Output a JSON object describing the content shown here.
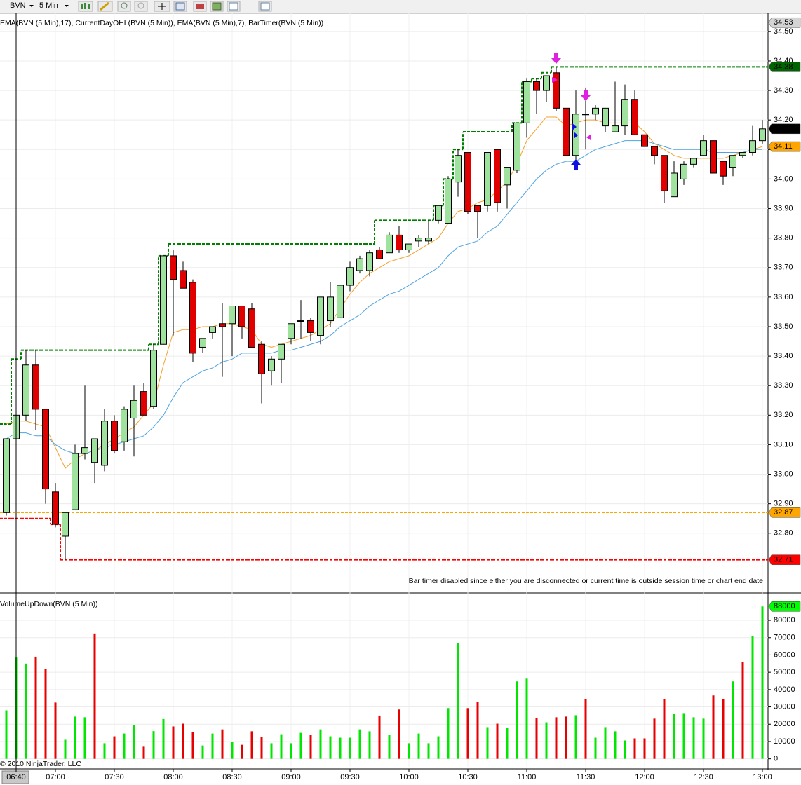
{
  "toolbar": {
    "symbol": "BVN",
    "interval": "5 Min"
  },
  "footer": "© 2010 NinjaTrader, LLC",
  "chart_data": [
    {
      "type": "candlestick",
      "title": "EMA(BVN (5 Min),17), CurrentDayOHL(BVN (5 Min)), EMA(BVN (5 Min),7), BarTimer(BVN (5 Min))",
      "annotation": "Bar timer disabled since either you are disconnected or current time is outside session time or chart end date",
      "up_color": "#9ee29e",
      "down_color": "#e00000",
      "open": [
        32.87,
        33.12,
        33.2,
        33.37,
        33.22,
        32.94,
        32.79,
        32.88,
        33.07,
        33.04,
        33.03,
        33.18,
        33.11,
        33.19,
        33.28,
        33.23,
        33.44,
        33.74,
        33.69,
        33.65,
        33.43,
        33.48,
        33.51,
        33.51,
        33.57,
        33.56,
        33.44,
        33.35,
        33.39,
        33.46,
        33.52,
        33.52,
        33.47,
        33.52,
        33.53,
        33.64,
        33.69,
        33.69,
        33.76,
        33.75,
        33.81,
        33.76,
        33.79,
        33.79,
        33.86,
        33.85,
        33.99,
        34.09,
        33.91,
        33.91,
        34.1,
        33.98,
        34.03,
        34.19,
        34.33,
        34.3,
        34.36,
        34.24,
        34.08,
        34.22,
        34.22,
        34.18,
        34.16,
        34.18,
        34.27,
        34.15,
        34.11,
        34.08,
        33.94,
        34.0,
        34.05,
        34.08,
        34.13,
        34.06,
        34.04,
        34.08,
        34.09,
        34.13
      ],
      "high": [
        33.12,
        33.37,
        33.42,
        33.42,
        33.22,
        32.97,
        32.87,
        33.1,
        33.3,
        33.12,
        33.22,
        33.2,
        33.23,
        33.3,
        33.31,
        33.44,
        33.74,
        33.76,
        33.72,
        33.66,
        33.46,
        33.5,
        33.58,
        33.57,
        33.57,
        33.58,
        33.45,
        33.4,
        33.44,
        33.51,
        33.59,
        33.53,
        33.6,
        33.65,
        33.64,
        33.72,
        33.74,
        33.76,
        33.77,
        33.82,
        33.84,
        33.78,
        33.81,
        33.86,
        33.91,
        34.01,
        34.1,
        34.09,
        33.91,
        34.09,
        34.1,
        34.04,
        34.19,
        34.34,
        34.34,
        34.35,
        34.38,
        34.24,
        34.3,
        34.31,
        34.25,
        34.24,
        34.33,
        34.32,
        34.3,
        34.15,
        34.11,
        34.08,
        34.06,
        34.06,
        34.07,
        34.15,
        34.13,
        34.06,
        34.08,
        34.09,
        34.18,
        34.2
      ],
      "low": [
        32.86,
        33.05,
        33.18,
        33.15,
        32.9,
        32.82,
        32.71,
        32.88,
        33.05,
        32.97,
        33.01,
        33.07,
        33.08,
        33.06,
        33.2,
        33.22,
        33.44,
        33.47,
        33.63,
        33.38,
        33.41,
        33.46,
        33.33,
        33.4,
        33.46,
        33.43,
        33.24,
        33.3,
        33.31,
        33.44,
        33.46,
        33.45,
        33.44,
        33.5,
        33.53,
        33.62,
        33.68,
        33.67,
        33.73,
        33.75,
        33.75,
        33.75,
        33.77,
        33.78,
        33.85,
        33.85,
        33.94,
        33.88,
        33.8,
        33.89,
        33.89,
        33.9,
        34.02,
        34.14,
        34.22,
        34.26,
        34.23,
        34.08,
        34.05,
        34.1,
        34.2,
        34.16,
        34.16,
        34.15,
        34.15,
        34.11,
        34.05,
        33.92,
        33.94,
        33.98,
        34.04,
        34.08,
        34.02,
        33.98,
        34.01,
        34.07,
        34.08,
        34.12
      ],
      "close": [
        33.12,
        33.2,
        33.37,
        33.22,
        32.95,
        32.83,
        32.87,
        33.07,
        33.09,
        33.12,
        33.18,
        33.08,
        33.22,
        33.25,
        33.2,
        33.42,
        33.74,
        33.66,
        33.63,
        33.41,
        33.46,
        33.5,
        33.5,
        33.57,
        33.5,
        33.43,
        33.34,
        33.39,
        33.44,
        33.51,
        33.52,
        33.48,
        33.6,
        33.6,
        33.64,
        33.7,
        33.73,
        33.75,
        33.73,
        33.81,
        33.76,
        33.78,
        33.8,
        33.8,
        33.91,
        34.0,
        34.08,
        33.89,
        33.89,
        34.09,
        33.92,
        34.04,
        34.19,
        34.33,
        34.3,
        34.35,
        34.24,
        34.08,
        34.22,
        34.22,
        34.24,
        34.24,
        34.18,
        34.27,
        34.15,
        34.11,
        34.08,
        33.96,
        34.02,
        34.05,
        34.07,
        34.13,
        34.02,
        34.01,
        34.08,
        34.09,
        34.13,
        34.17
      ],
      "series": [
        {
          "color": "#f5a02a",
          "values": [
            33.17,
            33.18,
            33.18,
            33.17,
            33.16,
            33.09,
            33.02,
            33.05,
            33.07,
            33.08,
            33.1,
            33.12,
            33.14,
            33.16,
            33.2,
            33.24,
            33.37,
            33.48,
            33.49,
            33.49,
            33.5,
            33.5,
            33.51,
            33.51,
            33.5,
            33.49,
            33.44,
            33.43,
            33.44,
            33.45,
            33.46,
            33.47,
            33.49,
            33.51,
            33.56,
            33.61,
            33.65,
            33.68,
            33.7,
            33.72,
            33.73,
            33.74,
            33.76,
            33.78,
            33.8,
            33.85,
            33.89,
            33.9,
            33.92,
            33.93,
            33.96,
            33.99,
            34.05,
            34.13,
            34.17,
            34.21,
            34.21,
            34.18,
            34.19,
            34.2,
            34.2,
            34.19,
            34.19,
            34.19,
            34.19,
            34.16,
            34.12,
            34.1,
            34.08,
            34.07,
            34.07,
            34.07,
            34.07,
            34.07,
            34.08,
            34.09,
            34.1,
            34.11
          ]
        },
        {
          "color": "#4fa3e0",
          "values": [
            33.12,
            33.14,
            33.14,
            33.13,
            33.13,
            33.1,
            33.08,
            33.07,
            33.07,
            33.08,
            33.09,
            33.1,
            33.11,
            33.12,
            33.13,
            33.16,
            33.2,
            33.26,
            33.31,
            33.33,
            33.35,
            33.36,
            33.38,
            33.39,
            33.41,
            33.41,
            33.41,
            33.41,
            33.42,
            33.42,
            33.43,
            33.44,
            33.45,
            33.47,
            33.5,
            33.52,
            33.54,
            33.57,
            33.59,
            33.61,
            33.62,
            33.64,
            33.66,
            33.68,
            33.7,
            33.74,
            33.77,
            33.78,
            33.79,
            33.82,
            33.84,
            33.88,
            33.92,
            33.96,
            34.0,
            34.03,
            34.05,
            34.06,
            34.06,
            34.08,
            34.1,
            34.11,
            34.12,
            34.13,
            34.13,
            34.13,
            34.12,
            34.11,
            34.1,
            34.1,
            34.1,
            34.1,
            34.09,
            34.09,
            34.09,
            34.09,
            34.1,
            34.1
          ]
        }
      ],
      "high_line": {
        "color": "#008000",
        "values": [
          33.17,
          33.39,
          33.42,
          33.42,
          33.42,
          33.42,
          33.42,
          33.42,
          33.42,
          33.42,
          33.42,
          33.42,
          33.42,
          33.42,
          33.42,
          33.44,
          33.74,
          33.78,
          33.78,
          33.78,
          33.78,
          33.78,
          33.78,
          33.78,
          33.78,
          33.78,
          33.78,
          33.78,
          33.78,
          33.78,
          33.78,
          33.78,
          33.78,
          33.78,
          33.78,
          33.78,
          33.78,
          33.78,
          33.86,
          33.86,
          33.86,
          33.86,
          33.86,
          33.86,
          33.91,
          34.0,
          34.1,
          34.16,
          34.16,
          34.16,
          34.16,
          34.16,
          34.19,
          34.33,
          34.34,
          34.36,
          34.38,
          34.38,
          34.38,
          34.38,
          34.38,
          34.38,
          34.38,
          34.38,
          34.38,
          34.38,
          34.38,
          34.38,
          34.38,
          34.38,
          34.38,
          34.38,
          34.38,
          34.38,
          34.38,
          34.38,
          34.38,
          34.38
        ]
      },
      "low_line": {
        "color": "#ff0000",
        "values": [
          32.85,
          32.85,
          32.85,
          32.85,
          32.85,
          32.83,
          32.71,
          32.71,
          32.71,
          32.71,
          32.71,
          32.71,
          32.71,
          32.71,
          32.71,
          32.71,
          32.71,
          32.71,
          32.71,
          32.71,
          32.71,
          32.71,
          32.71,
          32.71,
          32.71,
          32.71,
          32.71,
          32.71,
          32.71,
          32.71,
          32.71,
          32.71,
          32.71,
          32.71,
          32.71,
          32.71,
          32.71,
          32.71,
          32.71,
          32.71,
          32.71,
          32.71,
          32.71,
          32.71,
          32.71,
          32.71,
          32.71,
          32.71,
          32.71,
          32.71,
          32.71,
          32.71,
          32.71,
          32.71,
          32.71,
          32.71,
          32.71,
          32.71,
          32.71,
          32.71,
          32.71,
          32.71,
          32.71,
          32.71,
          32.71,
          32.71,
          32.71,
          32.71,
          32.71,
          32.71,
          32.71,
          32.71,
          32.71,
          32.71,
          32.71,
          32.71,
          32.71,
          32.71
        ]
      },
      "open_line": {
        "color": "#ffa500",
        "value": 32.87
      },
      "price_labels": [
        {
          "value": 34.53,
          "bg": "#d4d4d4",
          "fg": "#000000"
        },
        {
          "value": 34.38,
          "bg": "#006400",
          "fg": "#ffffff"
        },
        {
          "value": 34.17,
          "bg": "#000000",
          "fg": "#ffffff"
        },
        {
          "value": 34.11,
          "bg": "#ffa500",
          "fg": "#000000"
        },
        {
          "value": 32.87,
          "bg": "#ffa500",
          "fg": "#000000"
        },
        {
          "value": 32.71,
          "bg": "#ff0000",
          "fg": "#ffffff"
        }
      ],
      "ylim": [
        32.6,
        34.54
      ],
      "yticks": [
        {
          "value": 34.5,
          "label": "34.50"
        },
        {
          "value": 34.4,
          "label": "34.40"
        },
        {
          "value": 34.3,
          "label": "34.30"
        },
        {
          "value": 34.2,
          "label": "34.20"
        },
        {
          "value": 34.1,
          "label": "34.10"
        },
        {
          "value": 34.0,
          "label": "34.00"
        },
        {
          "value": 33.9,
          "label": "33.90"
        },
        {
          "value": 33.8,
          "label": "33.80"
        },
        {
          "value": 33.7,
          "label": "33.70"
        },
        {
          "value": 33.6,
          "label": "33.60"
        },
        {
          "value": 33.5,
          "label": "33.50"
        },
        {
          "value": 33.4,
          "label": "33.40"
        },
        {
          "value": 33.3,
          "label": "33.30"
        },
        {
          "value": 33.2,
          "label": "33.20"
        },
        {
          "value": 33.1,
          "label": "33.10"
        },
        {
          "value": 33.0,
          "label": "33.00"
        },
        {
          "value": 32.9,
          "label": "32.90"
        },
        {
          "value": 32.8,
          "label": "32.80"
        }
      ],
      "grid": true
    },
    {
      "type": "bar",
      "title": "VolumeUpDown(BVN (5 Min))",
      "categories": [
        null,
        "06:40",
        null,
        null,
        null,
        "07:00",
        null,
        null,
        null,
        null,
        null,
        "07:30",
        null,
        null,
        null,
        null,
        null,
        "08:00",
        null,
        null,
        null,
        null,
        null,
        "08:30",
        null,
        null,
        null,
        null,
        null,
        "09:00",
        null,
        null,
        null,
        null,
        null,
        "09:30",
        null,
        null,
        null,
        null,
        null,
        "10:00",
        null,
        null,
        null,
        null,
        null,
        "10:30",
        null,
        null,
        null,
        null,
        null,
        "11:00",
        null,
        null,
        null,
        null,
        null,
        "11:30",
        null,
        null,
        null,
        null,
        null,
        "12:00",
        null,
        null,
        null,
        null,
        null,
        "12:30",
        null,
        null,
        null,
        null,
        null,
        "13:00"
      ],
      "values": [
        28000,
        58500,
        55000,
        59000,
        52000,
        32500,
        11000,
        24400,
        24000,
        72400,
        9000,
        13000,
        14600,
        19500,
        7000,
        16000,
        23000,
        18700,
        20300,
        15400,
        7700,
        14600,
        17000,
        9800,
        8100,
        15900,
        12600,
        9000,
        14200,
        9000,
        15000,
        13800,
        17000,
        13000,
        12200,
        12200,
        17000,
        15900,
        25000,
        13800,
        28500,
        9000,
        14600,
        9000,
        13000,
        29300,
        66700,
        29300,
        33000,
        18300,
        20300,
        17900,
        44700,
        46300,
        23600,
        21100,
        24000,
        24400,
        25200,
        34500,
        12200,
        18300,
        15900,
        10600,
        11800,
        11800,
        23200,
        34500,
        26000,
        26400,
        24000,
        23200,
        36600,
        34500,
        44700,
        56100,
        71100,
        88000
      ],
      "colors": [
        "#00e600",
        "#00e600",
        "#00e600",
        "#e60000",
        "#e60000",
        "#e60000",
        "#00e600",
        "#00e600",
        "#00e600",
        "#e60000",
        "#00e600",
        "#e60000",
        "#00e600",
        "#00e600",
        "#e60000",
        "#00e600",
        "#00e600",
        "#e60000",
        "#e60000",
        "#e60000",
        "#00e600",
        "#00e600",
        "#e60000",
        "#00e600",
        "#e60000",
        "#e60000",
        "#e60000",
        "#00e600",
        "#00e600",
        "#00e600",
        "#00e600",
        "#e60000",
        "#00e600",
        "#00e600",
        "#00e600",
        "#00e600",
        "#00e600",
        "#00e600",
        "#e60000",
        "#00e600",
        "#e60000",
        "#00e600",
        "#00e600",
        "#00e600",
        "#00e600",
        "#00e600",
        "#00e600",
        "#e60000",
        "#e60000",
        "#00e600",
        "#e60000",
        "#00e600",
        "#00e600",
        "#00e600",
        "#e60000",
        "#00e600",
        "#e60000",
        "#e60000",
        "#00e600",
        "#e60000",
        "#00e600",
        "#00e600",
        "#00e600",
        "#00e600",
        "#e60000",
        "#e60000",
        "#e60000",
        "#e60000",
        "#00e600",
        "#00e600",
        "#00e600",
        "#00e600",
        "#e60000",
        "#e60000",
        "#00e600",
        "#e60000",
        "#00e600",
        "#00e600"
      ],
      "price_labels": [
        {
          "value": 88000,
          "bg": "#00ff00",
          "fg": "#000000"
        }
      ],
      "ylim": [
        -5000,
        95000
      ],
      "yticks": [
        0,
        10000,
        20000,
        30000,
        40000,
        50000,
        60000,
        70000,
        80000
      ],
      "grid": true
    }
  ]
}
